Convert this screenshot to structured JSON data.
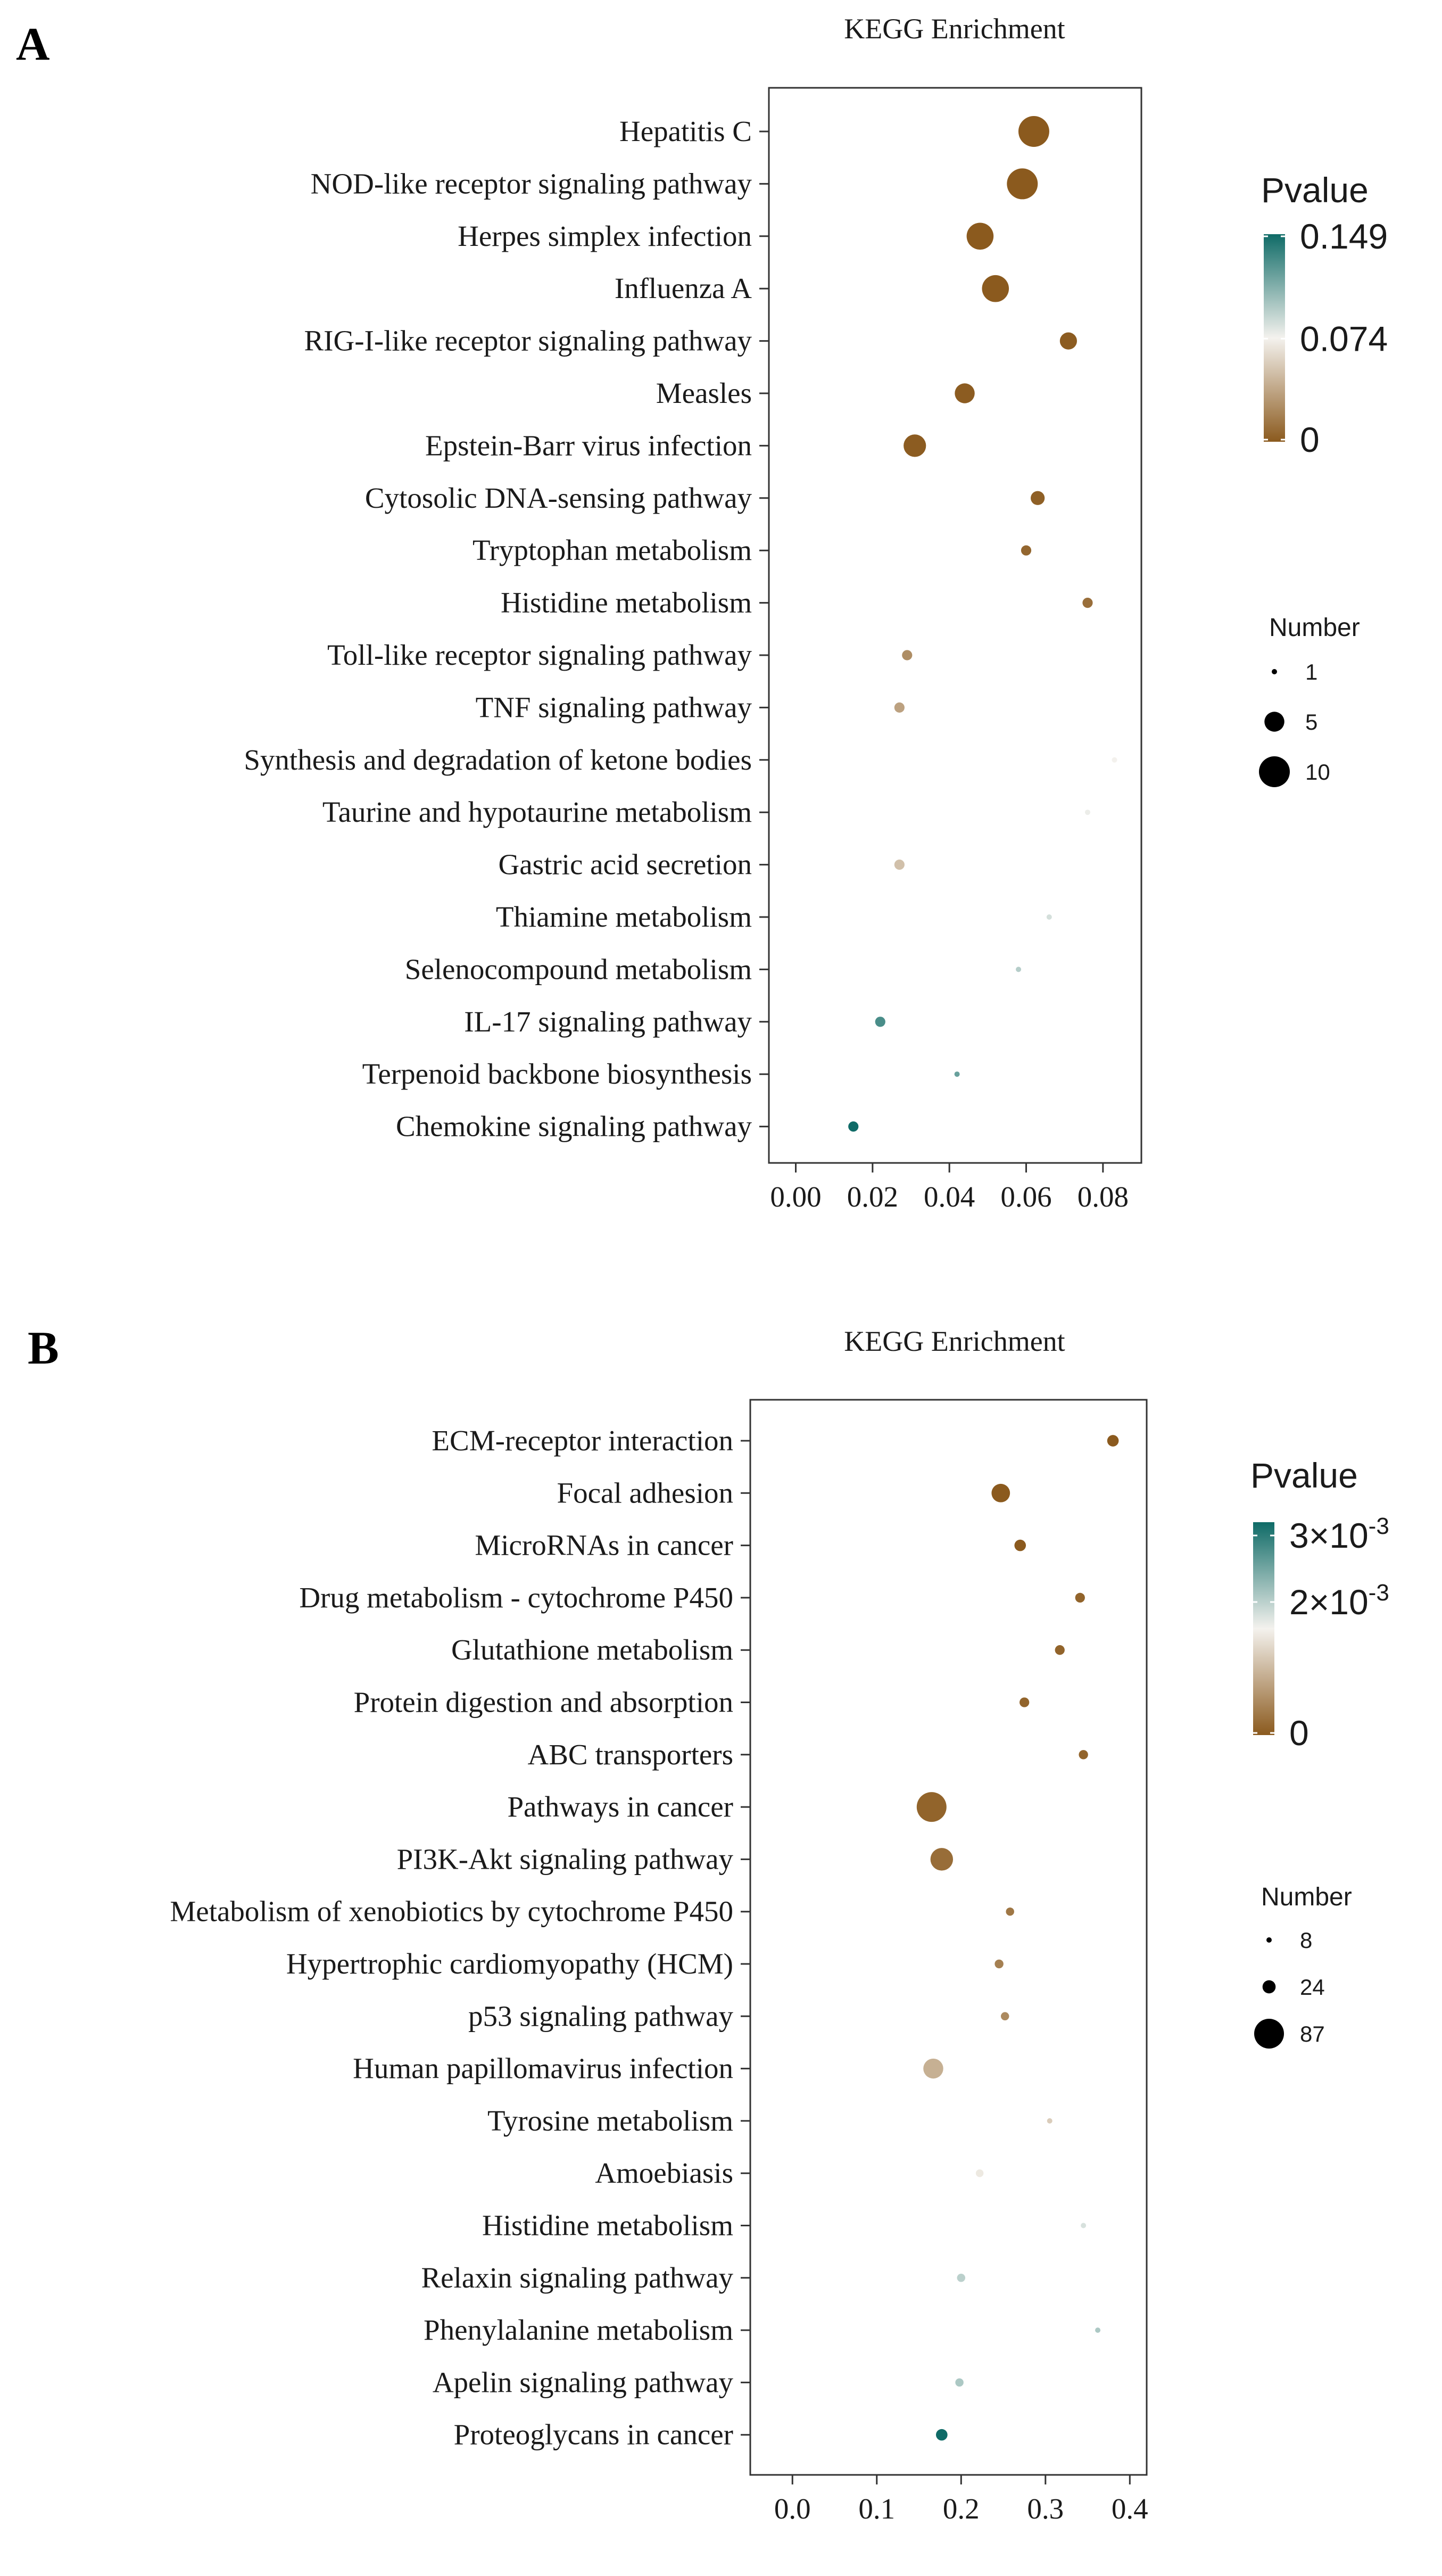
{
  "chart_data": [
    {
      "panel_label": "A",
      "type": "scatter",
      "title": "KEGG Enrichment",
      "xlabel": "",
      "ylabel": "",
      "xlim": [
        -0.007,
        0.09
      ],
      "x_ticks": [
        0.0,
        0.02,
        0.04,
        0.06,
        0.08
      ],
      "x_tick_labels": [
        "0.00",
        "0.02",
        "0.04",
        "0.06",
        "0.08"
      ],
      "color_legend": {
        "title": "Pvalue",
        "min": 0,
        "max": 0.149,
        "tick_values": [
          0.149,
          0.074,
          0
        ],
        "tick_labels": [
          "0.149",
          "0.074",
          "0"
        ],
        "low_color": "#8b5a1e",
        "mid_color": "#f4f2ee",
        "high_color": "#0f6b67"
      },
      "size_legend": {
        "title": "Number",
        "values": [
          1,
          5,
          10
        ],
        "labels": [
          "1",
          "5",
          "10"
        ]
      },
      "points": [
        {
          "pathway": "Hepatitis C",
          "x": 0.062,
          "number": 10,
          "pvalue": 0.0
        },
        {
          "pathway": "NOD-like receptor signaling pathway",
          "x": 0.059,
          "number": 10,
          "pvalue": 0.0
        },
        {
          "pathway": "Herpes simplex infection",
          "x": 0.048,
          "number": 8,
          "pvalue": 0.0
        },
        {
          "pathway": "Influenza A",
          "x": 0.052,
          "number": 8,
          "pvalue": 0.0
        },
        {
          "pathway": "RIG-I-like receptor signaling pathway",
          "x": 0.071,
          "number": 4,
          "pvalue": 0.001
        },
        {
          "pathway": "Measles",
          "x": 0.044,
          "number": 5,
          "pvalue": 0.001
        },
        {
          "pathway": "Epstein-Barr virus infection",
          "x": 0.031,
          "number": 6,
          "pvalue": 0.001
        },
        {
          "pathway": "Cytosolic DNA-sensing pathway",
          "x": 0.063,
          "number": 3,
          "pvalue": 0.003
        },
        {
          "pathway": "Tryptophan metabolism",
          "x": 0.06,
          "number": 2,
          "pvalue": 0.006
        },
        {
          "pathway": "Histidine metabolism",
          "x": 0.076,
          "number": 2,
          "pvalue": 0.01
        },
        {
          "pathway": "Toll-like receptor signaling pathway",
          "x": 0.029,
          "number": 2,
          "pvalue": 0.025
        },
        {
          "pathway": "TNF signaling pathway",
          "x": 0.027,
          "number": 2,
          "pvalue": 0.035
        },
        {
          "pathway": "Synthesis and degradation of ketone bodies",
          "x": 0.083,
          "number": 1,
          "pvalue": 0.074
        },
        {
          "pathway": "Taurine and hypotaurine metabolism",
          "x": 0.076,
          "number": 1,
          "pvalue": 0.077
        },
        {
          "pathway": "Gastric acid secretion",
          "x": 0.027,
          "number": 2,
          "pvalue": 0.05
        },
        {
          "pathway": "Thiamine metabolism",
          "x": 0.066,
          "number": 1,
          "pvalue": 0.085
        },
        {
          "pathway": "Selenocompound metabolism",
          "x": 0.058,
          "number": 1,
          "pvalue": 0.095
        },
        {
          "pathway": "IL-17 signaling pathway",
          "x": 0.022,
          "number": 2,
          "pvalue": 0.13
        },
        {
          "pathway": "Terpenoid backbone biosynthesis",
          "x": 0.042,
          "number": 1,
          "pvalue": 0.12
        },
        {
          "pathway": "Chemokine signaling pathway",
          "x": 0.015,
          "number": 2,
          "pvalue": 0.149
        }
      ]
    },
    {
      "panel_label": "B",
      "type": "scatter",
      "title": "KEGG Enrichment",
      "xlabel": "",
      "ylabel": "",
      "xlim": [
        -0.05,
        0.42
      ],
      "x_ticks": [
        0.0,
        0.1,
        0.2,
        0.3,
        0.4
      ],
      "x_tick_labels": [
        "0.0",
        "0.1",
        "0.2",
        "0.3",
        "0.4"
      ],
      "color_legend": {
        "title": "Pvalue",
        "min": 0,
        "max": 0.0032,
        "tick_values": [
          0.003,
          0.002,
          0
        ],
        "tick_labels": [
          "3×10",
          "2×10",
          "0"
        ],
        "tick_exponents": [
          "-3",
          "-3",
          ""
        ],
        "low_color": "#8b5a1e",
        "mid_color": "#f4f2ee",
        "high_color": "#0f6b67"
      },
      "size_legend": {
        "title": "Number",
        "values": [
          8,
          24,
          87
        ],
        "labels": [
          "8",
          "24",
          "87"
        ]
      },
      "points": [
        {
          "pathway": "ECM-receptor interaction",
          "x": 0.38,
          "number": 20,
          "pvalue": 0.0
        },
        {
          "pathway": "Focal adhesion",
          "x": 0.247,
          "number": 40,
          "pvalue": 0.0
        },
        {
          "pathway": "MicroRNAs in cancer",
          "x": 0.27,
          "number": 20,
          "pvalue": 0.0
        },
        {
          "pathway": "Drug metabolism - cytochrome P450",
          "x": 0.341,
          "number": 16,
          "pvalue": 0.0001
        },
        {
          "pathway": "Glutathione metabolism",
          "x": 0.317,
          "number": 16,
          "pvalue": 0.0001
        },
        {
          "pathway": "Protein digestion and absorption",
          "x": 0.275,
          "number": 16,
          "pvalue": 0.0001
        },
        {
          "pathway": "ABC transporters",
          "x": 0.345,
          "number": 15,
          "pvalue": 0.0001
        },
        {
          "pathway": "Pathways in cancer",
          "x": 0.165,
          "number": 87,
          "pvalue": 0.0001
        },
        {
          "pathway": "PI3K-Akt signaling pathway",
          "x": 0.177,
          "number": 55,
          "pvalue": 0.0002
        },
        {
          "pathway": "Metabolism of xenobiotics by cytochrome P450",
          "x": 0.258,
          "number": 13,
          "pvalue": 0.0003
        },
        {
          "pathway": "Hypertrophic cardiomyopathy (HCM)",
          "x": 0.245,
          "number": 14,
          "pvalue": 0.0004
        },
        {
          "pathway": "p53 signaling pathway",
          "x": 0.252,
          "number": 13,
          "pvalue": 0.0005
        },
        {
          "pathway": "Human papillomavirus infection",
          "x": 0.167,
          "number": 45,
          "pvalue": 0.0009
        },
        {
          "pathway": "Tyrosine metabolism",
          "x": 0.305,
          "number": 8,
          "pvalue": 0.0012
        },
        {
          "pathway": "Amoebiasis",
          "x": 0.222,
          "number": 12,
          "pvalue": 0.0015
        },
        {
          "pathway": "Histidine metabolism",
          "x": 0.345,
          "number": 6,
          "pvalue": 0.0018
        },
        {
          "pathway": "Relaxin signaling pathway",
          "x": 0.2,
          "number": 13,
          "pvalue": 0.002
        },
        {
          "pathway": "Phenylalanine metabolism",
          "x": 0.362,
          "number": 6,
          "pvalue": 0.0021
        },
        {
          "pathway": "Apelin signaling pathway",
          "x": 0.198,
          "number": 13,
          "pvalue": 0.0021
        },
        {
          "pathway": "Proteoglycans in cancer",
          "x": 0.177,
          "number": 20,
          "pvalue": 0.0032
        }
      ]
    }
  ]
}
